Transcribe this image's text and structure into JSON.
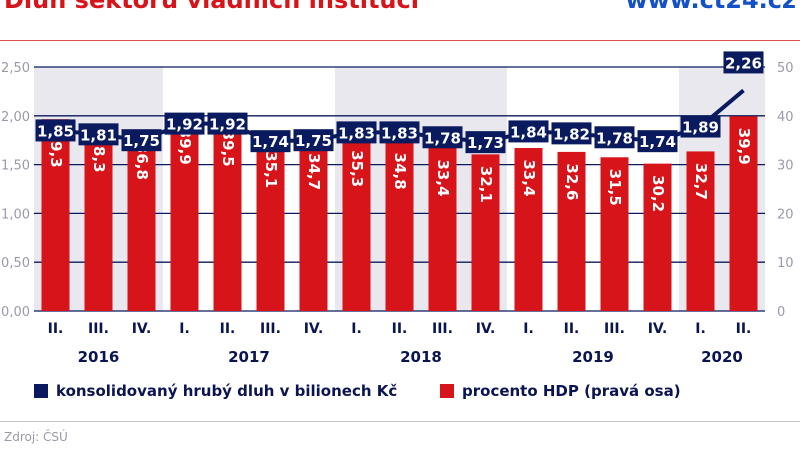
{
  "header": {
    "title": "Dluh sektoru vládních institucí",
    "logo": "www.ct24.cz"
  },
  "source": "Zdroj: ČSÚ",
  "legend": [
    {
      "label": "konsolidovaný hrubý dluh v bilionech Kč",
      "color": "#0a1a5e"
    },
    {
      "label": "procento HDP (pravá osa)",
      "color": "#d7141a"
    }
  ],
  "chart_data": {
    "type": "bar+line",
    "categories": [
      "II.",
      "III.",
      "IV.",
      "I.",
      "II.",
      "III.",
      "IV.",
      "I.",
      "II.",
      "III.",
      "IV.",
      "I.",
      "II.",
      "III.",
      "IV.",
      "I.",
      "II."
    ],
    "years": [
      {
        "label": "2016",
        "quarters": 3
      },
      {
        "label": "2017",
        "quarters": 4
      },
      {
        "label": "2018",
        "quarters": 4
      },
      {
        "label": "2019",
        "quarters": 4
      },
      {
        "label": "2020",
        "quarters": 2
      }
    ],
    "shaded_years": [
      "2016",
      "2018",
      "2020"
    ],
    "series": [
      {
        "name": "konsolidovaný hrubý dluh v bilionech Kč",
        "type": "line",
        "axis": "left",
        "color": "#0a1a5e",
        "values": [
          1.85,
          1.81,
          1.75,
          1.92,
          1.92,
          1.74,
          1.75,
          1.83,
          1.83,
          1.78,
          1.73,
          1.84,
          1.82,
          1.78,
          1.74,
          1.89,
          2.26
        ]
      },
      {
        "name": "procento HDP (pravá osa)",
        "type": "bar",
        "axis": "right",
        "color": "#d7141a",
        "values": [
          39.3,
          38.3,
          36.8,
          39.9,
          39.5,
          35.1,
          34.7,
          35.3,
          34.8,
          33.4,
          32.1,
          33.4,
          32.6,
          31.5,
          30.2,
          32.7,
          39.9
        ]
      }
    ],
    "left_axis": {
      "range": [
        0,
        2.5
      ],
      "ticks": [
        "0,00",
        "0,50",
        "1,00",
        "1,50",
        "2,00",
        "2,50"
      ]
    },
    "right_axis": {
      "range": [
        0,
        50
      ],
      "ticks": [
        "0",
        "10",
        "20",
        "30",
        "40",
        "50"
      ]
    },
    "grid": true,
    "legend_position": "bottom"
  }
}
